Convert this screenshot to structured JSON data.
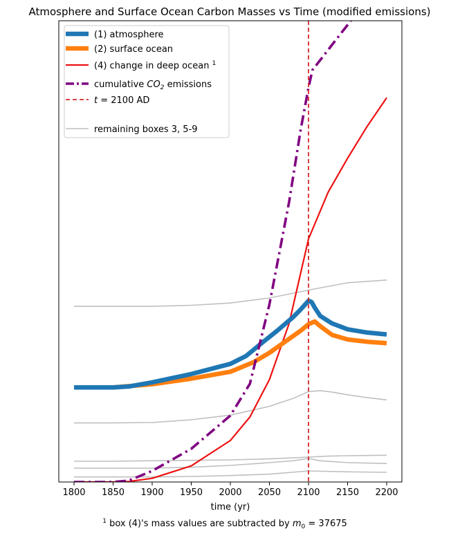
{
  "chart_data": {
    "type": "line",
    "title": "Atmosphere and Surface Ocean Carbon Masses vs Time (modified emissions)",
    "xlabel": "time (yr)",
    "ylabel": "",
    "xlim": [
      1782,
      2210
    ],
    "ylim": [
      0,
      100
    ],
    "x_ticks": [
      1800,
      1850,
      1900,
      1950,
      2000,
      2050,
      2100,
      2150,
      2200
    ],
    "y_ticks_visible": false,
    "grid": false,
    "legend_position": "top-left",
    "vline": {
      "x": 2100,
      "color": "#d62728",
      "style": "dashed"
    },
    "footnote": {
      "sup": "1",
      "text": " box (4)'s mass values are subtracted by ",
      "math": "m",
      "math_sub": "0",
      "value": " = 37675"
    },
    "legend": [
      {
        "key": "atm",
        "label": "(1) atmosphere"
      },
      {
        "key": "surf",
        "label": "(2) surface ocean"
      },
      {
        "key": "deep",
        "label": "(4) change in deep ocean ",
        "sup": "1"
      },
      {
        "key": "cum",
        "label": "cumulative ",
        "math": "CO",
        "math_sub": "2",
        "label_after": " emissions"
      },
      {
        "key": "vline",
        "math": "t",
        "label": " = 2100 AD"
      },
      {
        "key": "gray",
        "label": "remaining boxes 3, 5-9"
      }
    ],
    "series": [
      {
        "key": "atm",
        "color": "#1f77b4",
        "width": 6.5,
        "style": "solid",
        "x": [
          1800,
          1850,
          1870,
          1900,
          1950,
          2000,
          2020,
          2040,
          2060,
          2080,
          2090,
          2100,
          2104,
          2108,
          2115,
          2130,
          2150,
          2175,
          2200
        ],
        "y": [
          20.5,
          20.5,
          20.7,
          21.6,
          23.4,
          25.6,
          27.3,
          30.1,
          32.8,
          35.7,
          37.4,
          39.3,
          39.0,
          37.8,
          36.0,
          34.4,
          33.1,
          32.4,
          32.0
        ]
      },
      {
        "key": "surf",
        "color": "#ff7f0e",
        "width": 6.5,
        "style": "solid",
        "x": [
          1800,
          1850,
          1900,
          1950,
          2000,
          2030,
          2050,
          2070,
          2090,
          2100,
          2108,
          2115,
          2130,
          2150,
          2175,
          2200
        ],
        "y": [
          20.5,
          20.5,
          21.2,
          22.4,
          23.9,
          26.0,
          28.0,
          30.4,
          32.8,
          34.2,
          34.8,
          33.8,
          31.9,
          30.9,
          30.4,
          30.1
        ]
      },
      {
        "key": "deep",
        "color": "#ee1111",
        "width": 2.2,
        "style": "solid",
        "x": [
          1800,
          1850,
          1870,
          1900,
          1950,
          2000,
          2025,
          2050,
          2075,
          2100,
          2125,
          2150,
          2175,
          2200
        ],
        "y": [
          0,
          0,
          0.1,
          0.8,
          3.5,
          9,
          14.1,
          22.2,
          34.3,
          52.7,
          62.8,
          70.2,
          77.1,
          83.3
        ]
      },
      {
        "key": "cum",
        "color": "#800080",
        "width": 3.6,
        "style": "dashdot",
        "x": [
          1800,
          1850,
          1870,
          1900,
          1950,
          2000,
          2025,
          2050,
          2075,
          2090,
          2100,
          2105,
          2150,
          2200
        ],
        "y": [
          0,
          0,
          0.3,
          2.4,
          7.2,
          14.4,
          21.3,
          38.5,
          60.6,
          76.4,
          85.5,
          89.3,
          99.1,
          110.2
        ]
      },
      {
        "key": "gray",
        "color": "#bfbfbf",
        "width": 1.6,
        "style": "solid",
        "x": [
          1800,
          1850,
          1900,
          1950,
          2000,
          2050,
          2100,
          2150,
          2200
        ],
        "y": [
          38.1,
          38.1,
          38.1,
          38.3,
          38.8,
          39.9,
          41.6,
          43.2,
          43.8
        ]
      },
      {
        "key": "gray",
        "color": "#bfbfbf",
        "width": 1.6,
        "style": "solid",
        "x": [
          1800,
          1850,
          1900,
          1950,
          2000,
          2050,
          2080,
          2100,
          2115,
          2130,
          2150,
          2175,
          2200
        ],
        "y": [
          12.8,
          12.8,
          12.9,
          13.5,
          14.5,
          16.4,
          18.1,
          19.6,
          19.8,
          19.5,
          18.9,
          18.3,
          17.8
        ]
      },
      {
        "key": "gray",
        "color": "#bfbfbf",
        "width": 1.6,
        "style": "solid",
        "x": [
          1800,
          1850,
          1900,
          1950,
          2000,
          2050,
          2100,
          2125,
          2150,
          2200
        ],
        "y": [
          4.5,
          4.5,
          4.6,
          4.7,
          4.8,
          5.0,
          5.4,
          5.6,
          5.7,
          5.8
        ]
      },
      {
        "key": "gray",
        "color": "#bfbfbf",
        "width": 1.6,
        "style": "solid",
        "x": [
          1800,
          1850,
          1900,
          1950,
          2000,
          2050,
          2080,
          2100,
          2115,
          2150,
          2200
        ],
        "y": [
          3.0,
          3.0,
          3.0,
          3.2,
          3.6,
          4.2,
          4.6,
          5.1,
          4.6,
          4.2,
          4.0
        ]
      },
      {
        "key": "gray",
        "color": "#bfbfbf",
        "width": 1.6,
        "style": "solid",
        "x": [
          1800,
          1850,
          1900,
          1950,
          2000,
          2050,
          2100,
          2150,
          2200
        ],
        "y": [
          1.1,
          1.1,
          1.1,
          1.2,
          1.4,
          1.7,
          2.4,
          2.2,
          2.1
        ]
      }
    ]
  }
}
